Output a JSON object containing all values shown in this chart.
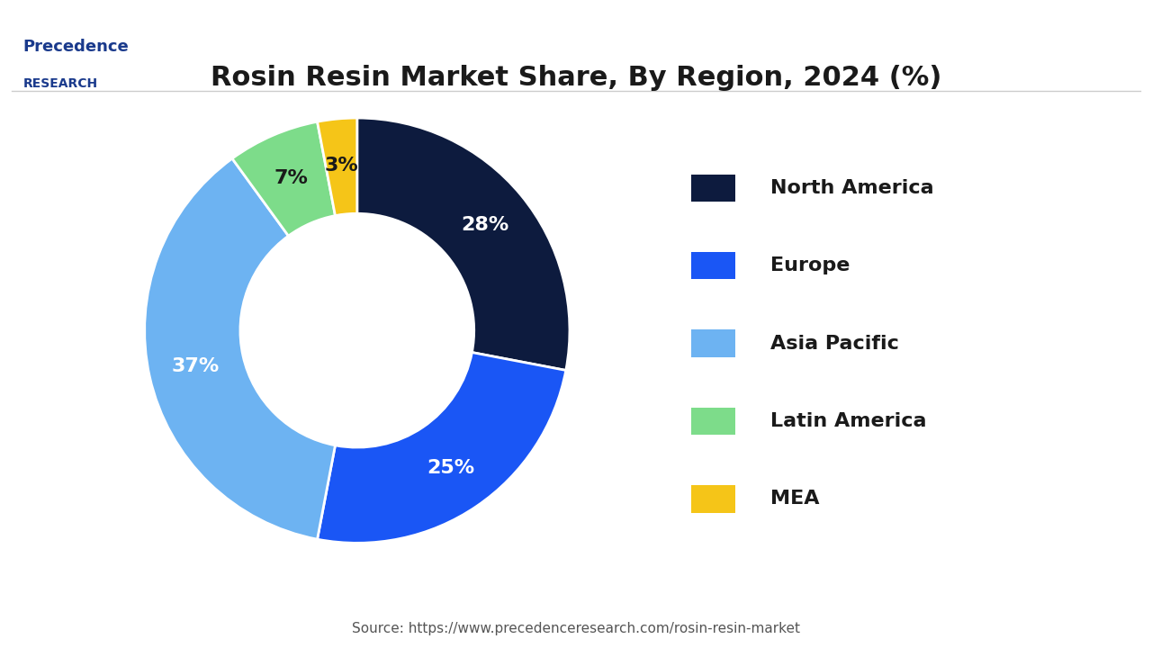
{
  "title": "Rosin Resin Market Share, By Region, 2024 (%)",
  "segments": [
    {
      "label": "North America",
      "value": 28,
      "color": "#0d1b3e",
      "text_color": "white"
    },
    {
      "label": "Europe",
      "value": 25,
      "color": "#1a56f5",
      "text_color": "white"
    },
    {
      "label": "Asia Pacific",
      "value": 37,
      "color": "#6db3f2",
      "text_color": "white"
    },
    {
      "label": "Latin America",
      "value": 7,
      "color": "#7ddc8a",
      "text_color": "#1a1a1a"
    },
    {
      "label": "MEA",
      "value": 3,
      "color": "#f5c518",
      "text_color": "#1a1a1a"
    }
  ],
  "source_text": "Source: https://www.precedenceresearch.com/rosin-resin-market",
  "background_color": "#ffffff",
  "title_fontsize": 22,
  "legend_fontsize": 16,
  "label_fontsize": 16,
  "donut_width": 0.45,
  "start_angle": 90
}
